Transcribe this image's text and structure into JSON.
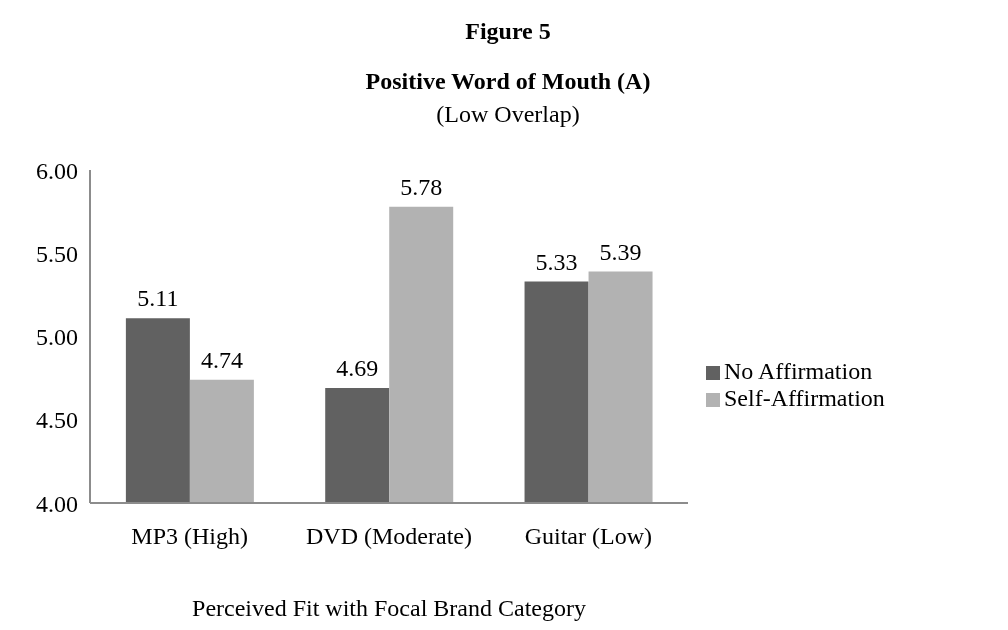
{
  "chart_data": {
    "type": "bar",
    "title": "Figure 5",
    "subtitle": "Positive Word of Mouth (A)",
    "annotations": [
      "(Low Overlap)"
    ],
    "xlabel": "Perceived Fit with Focal Brand Category",
    "categories": [
      "MP3 (High)",
      "DVD (Moderate)",
      "Guitar (Low)"
    ],
    "series": [
      {
        "name": "No Affirmation",
        "color": "#616161",
        "values": [
          5.11,
          4.69,
          5.33
        ]
      },
      {
        "name": "Self-Affirmation",
        "color": "#b2b2b2",
        "values": [
          4.74,
          5.78,
          5.39
        ]
      }
    ],
    "ylim": [
      4,
      6
    ],
    "yticks": [
      {
        "value": 4,
        "label": "4.00"
      },
      {
        "value": 4.5,
        "label": "4.50"
      },
      {
        "value": 5,
        "label": "5.00"
      },
      {
        "value": 5.5,
        "label": "5.50"
      },
      {
        "value": 6,
        "label": "6.00"
      }
    ],
    "grid": false,
    "legend": "right",
    "data_labels": true
  }
}
